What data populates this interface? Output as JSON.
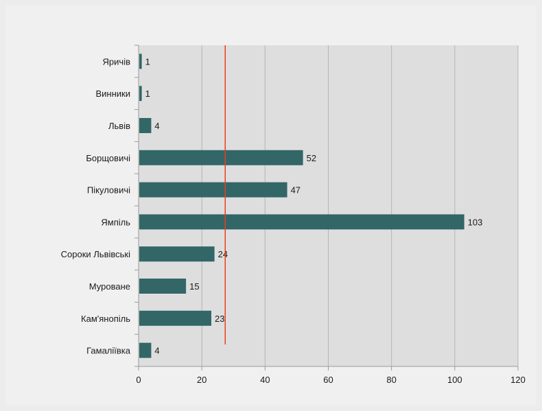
{
  "chart_data": {
    "type": "bar",
    "orientation": "horizontal",
    "categories": [
      "Яричів",
      "Винники",
      "Львів",
      "Борщовичі",
      "Пікуловичі",
      "Ямпіль",
      "Сороки Львівські",
      "Муроване",
      "Кам'янопіль",
      "Гамаліївка"
    ],
    "values": [
      1,
      1,
      4,
      52,
      47,
      103,
      24,
      15,
      23,
      4
    ],
    "data_labels": [
      "1",
      "1",
      "4",
      "52",
      "47",
      "103",
      "24",
      "15",
      "23",
      "4"
    ],
    "xlim": [
      0,
      120
    ],
    "x_ticks": [
      0,
      20,
      40,
      60,
      80,
      100,
      120
    ],
    "x_tick_labels": [
      "0",
      "20",
      "40",
      "60",
      "80",
      "100",
      "120"
    ],
    "reference_line": 27.4,
    "grid": true,
    "colors": {
      "bar": "#336666",
      "reference_line": "#e8401c",
      "plot_background": "#dedede",
      "grid": "#b4b4b4"
    }
  }
}
